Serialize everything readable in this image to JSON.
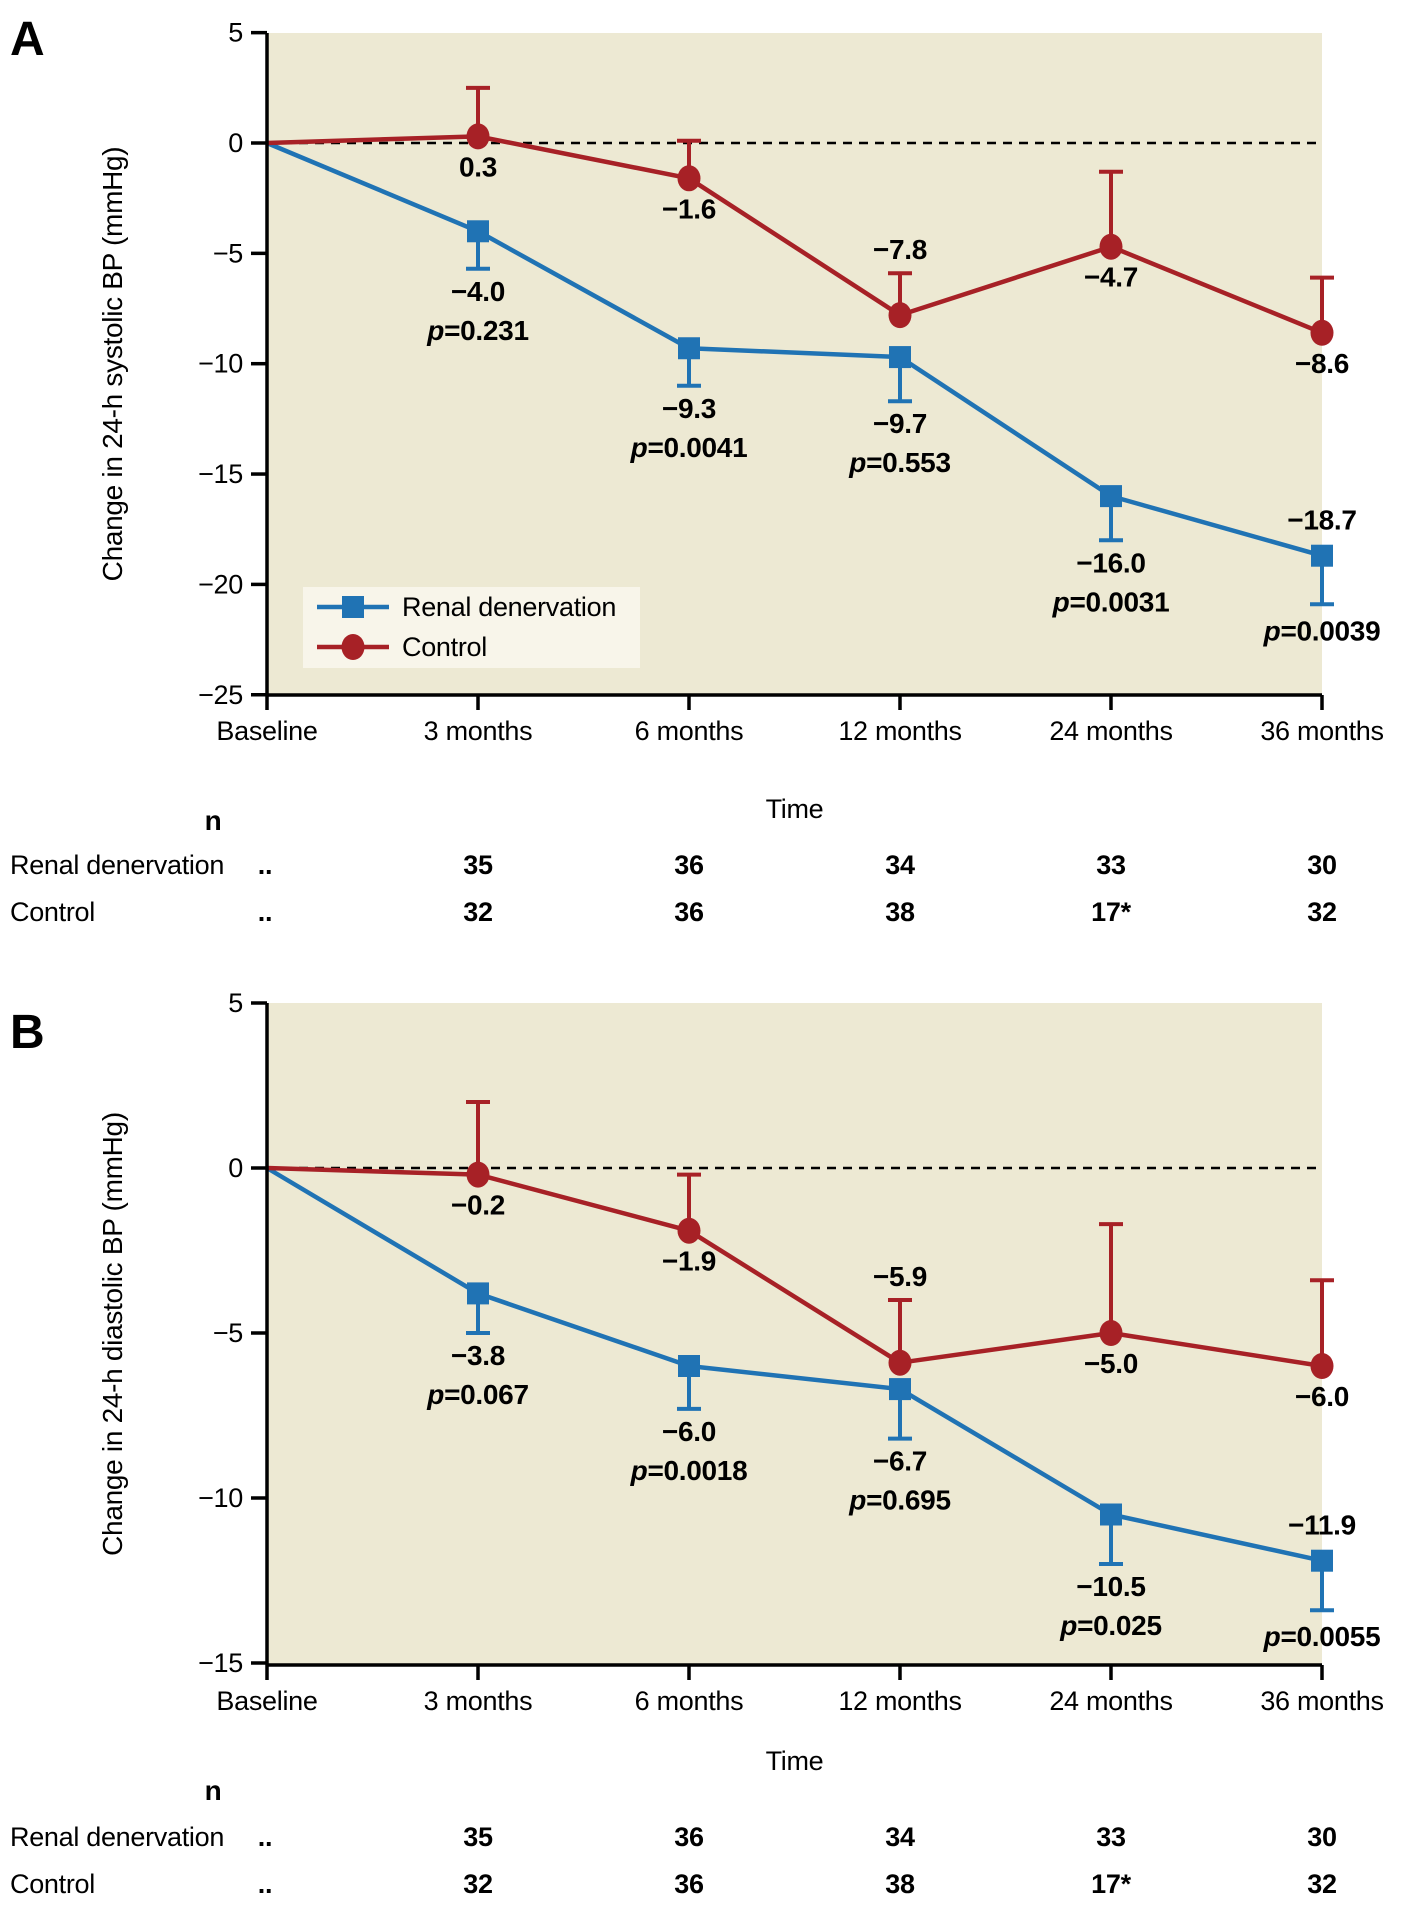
{
  "colors": {
    "renal": "#2073b4",
    "control": "#a72126",
    "plot_bg": "#ede9d3",
    "legend_bg": "#f8f5ea",
    "text": "#000000"
  },
  "legend": {
    "renal_label": "Renal denervation",
    "control_label": "Control"
  },
  "n_table": {
    "header": "n",
    "rows": [
      {
        "label": "Renal denervation",
        "dots": "..",
        "color_key": "renal",
        "values": [
          "35",
          "36",
          "34",
          "33",
          "30"
        ]
      },
      {
        "label": "Control",
        "dots": "..",
        "color_key": "control",
        "values": [
          "32",
          "36",
          "38",
          "17*",
          "32"
        ]
      }
    ]
  },
  "chart_data": {
    "type": "line",
    "xlabel": "Time",
    "x_categories": [
      "Baseline",
      "3 months",
      "6 months",
      "12 months",
      "24 months",
      "36 months"
    ],
    "legend_position": "lower-left-inside-panel-A",
    "grid": false,
    "zero_reference_line": "dashed",
    "panels": [
      {
        "id": "A",
        "ylabel": "Change in 24-h systolic BP (mmHg)",
        "ylim": [
          -25,
          5
        ],
        "yticks": [
          5,
          0,
          -5,
          -10,
          -15,
          -20,
          -25
        ],
        "show_legend": true,
        "series": [
          {
            "name": "Renal denervation",
            "color_key": "renal",
            "marker": "square",
            "error_dir": "down",
            "values": [
              0,
              -4.0,
              -9.3,
              -9.7,
              -16.0,
              -18.7
            ],
            "error_to": [
              null,
              -5.7,
              -11.0,
              -11.7,
              -18.0,
              -20.9
            ],
            "value_labels": [
              null,
              "−4.0",
              "−9.3",
              "−9.7",
              "−16.0",
              "−18.7"
            ],
            "p_labels": [
              null,
              "p=0.231",
              "p=0.0041",
              "p=0.553",
              "p=0.0031",
              "p=0.0039"
            ]
          },
          {
            "name": "Control",
            "color_key": "control",
            "marker": "circle",
            "error_dir": "up",
            "values": [
              0,
              0.3,
              -1.6,
              -7.8,
              -4.7,
              -8.6
            ],
            "error_to": [
              null,
              2.5,
              0.1,
              -5.9,
              -1.3,
              -6.1
            ],
            "value_labels": [
              null,
              "0.3",
              "−1.6",
              "−7.8",
              "−4.7",
              "−8.6"
            ],
            "p_labels": null
          }
        ]
      },
      {
        "id": "B",
        "ylabel": "Change in 24-h diastolic BP (mmHg)",
        "ylim": [
          -15,
          5
        ],
        "yticks": [
          5,
          0,
          -5,
          -10,
          -15
        ],
        "show_legend": false,
        "series": [
          {
            "name": "Renal denervation",
            "color_key": "renal",
            "marker": "square",
            "error_dir": "down",
            "values": [
              0,
              -3.8,
              -6.0,
              -6.7,
              -10.5,
              -11.9
            ],
            "error_to": [
              null,
              -5.0,
              -7.3,
              -8.2,
              -12.0,
              -13.4
            ],
            "value_labels": [
              null,
              "−3.8",
              "−6.0",
              "−6.7",
              "−10.5",
              "−11.9"
            ],
            "p_labels": [
              null,
              "p=0.067",
              "p=0.0018",
              "p=0.695",
              "p=0.025",
              "p=0.0055"
            ]
          },
          {
            "name": "Control",
            "color_key": "control",
            "marker": "circle",
            "error_dir": "up",
            "values": [
              0,
              -0.2,
              -1.9,
              -5.9,
              -5.0,
              -6.0
            ],
            "error_to": [
              null,
              2.0,
              -0.2,
              -4.0,
              -1.7,
              -3.4
            ],
            "value_labels": [
              null,
              "−0.2",
              "−1.9",
              "−5.9",
              "−5.0",
              "−6.0"
            ],
            "p_labels": null
          }
        ]
      }
    ]
  }
}
